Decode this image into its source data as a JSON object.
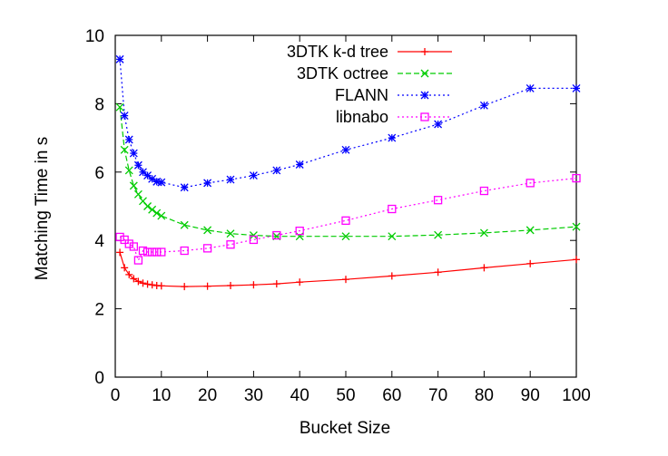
{
  "chart_data": {
    "type": "line",
    "title": "",
    "xlabel": "Bucket Size",
    "ylabel": "Matching Time in s",
    "xlim": [
      0,
      100
    ],
    "ylim": [
      0,
      10
    ],
    "xticks": [
      0,
      10,
      20,
      30,
      40,
      50,
      60,
      70,
      80,
      90,
      100
    ],
    "yticks": [
      0,
      2,
      4,
      6,
      8,
      10
    ],
    "grid": false,
    "legend_position": "top-right",
    "series": [
      {
        "name": "3DTK k-d tree",
        "color": "#ff0000",
        "dash": "solid",
        "marker": "plus",
        "x": [
          1,
          2,
          3,
          4,
          5,
          6,
          7,
          8,
          9,
          10,
          15,
          20,
          25,
          30,
          35,
          40,
          50,
          60,
          70,
          80,
          90,
          100
        ],
        "y": [
          3.65,
          3.2,
          3.0,
          2.88,
          2.8,
          2.75,
          2.72,
          2.7,
          2.68,
          2.67,
          2.65,
          2.66,
          2.68,
          2.7,
          2.73,
          2.78,
          2.86,
          2.96,
          3.07,
          3.2,
          3.32,
          3.44
        ]
      },
      {
        "name": "3DTK octree",
        "color": "#00cc00",
        "dash": "dashed",
        "marker": "cross",
        "x": [
          1,
          2,
          3,
          4,
          5,
          6,
          7,
          8,
          9,
          10,
          15,
          20,
          25,
          30,
          35,
          40,
          50,
          60,
          70,
          80,
          90,
          100
        ],
        "y": [
          7.9,
          6.65,
          6.05,
          5.6,
          5.35,
          5.15,
          5.0,
          4.9,
          4.8,
          4.72,
          4.45,
          4.3,
          4.2,
          4.15,
          4.12,
          4.12,
          4.12,
          4.12,
          4.16,
          4.22,
          4.3,
          4.4
        ]
      },
      {
        "name": "FLANN",
        "color": "#0000ff",
        "dash": "dotted",
        "marker": "star",
        "x": [
          1,
          2,
          3,
          4,
          5,
          6,
          7,
          8,
          9,
          10,
          15,
          20,
          25,
          30,
          35,
          40,
          50,
          60,
          70,
          80,
          90,
          100
        ],
        "y": [
          9.3,
          7.65,
          6.95,
          6.55,
          6.2,
          6.0,
          5.9,
          5.8,
          5.72,
          5.7,
          5.55,
          5.68,
          5.78,
          5.9,
          6.05,
          6.22,
          6.65,
          7.0,
          7.4,
          7.95,
          8.45,
          8.45
        ]
      },
      {
        "name": "libnabo",
        "color": "#ff00ff",
        "dash": "dotted",
        "marker": "square",
        "x": [
          1,
          2,
          3,
          4,
          5,
          6,
          7,
          8,
          9,
          10,
          15,
          20,
          25,
          30,
          35,
          40,
          50,
          60,
          70,
          80,
          90,
          100
        ],
        "y": [
          4.1,
          4.02,
          3.9,
          3.82,
          3.42,
          3.7,
          3.66,
          3.66,
          3.66,
          3.66,
          3.7,
          3.77,
          3.88,
          4.02,
          4.15,
          4.28,
          4.58,
          4.92,
          5.18,
          5.45,
          5.68,
          5.82
        ]
      }
    ]
  }
}
